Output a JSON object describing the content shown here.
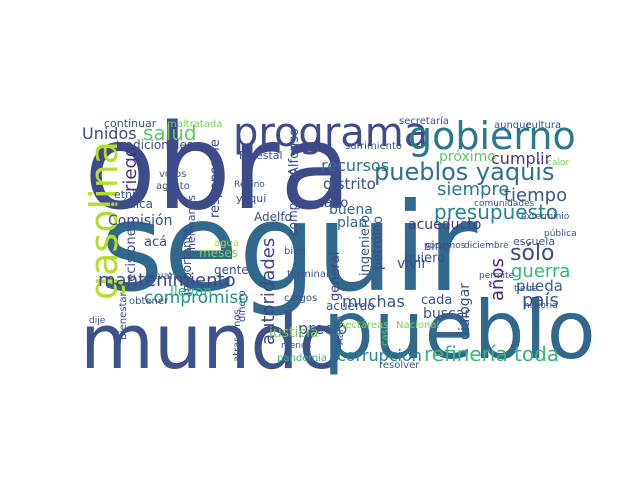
{
  "words": [
    "obra",
    "seguir",
    "mundo",
    "pueblo",
    "programa",
    "gobierno",
    "gasolina",
    "pueblos yaquis",
    "presupuesto",
    "refinería toda",
    "mantenimiento",
    "compromiso",
    "autoridades",
    "guerra",
    "sólo",
    "país",
    "salud",
    "Unidos",
    "siempre",
    "tiempo",
    "muchas",
    "corrupción",
    "precio",
    "justicia",
    "recursos",
    "riego",
    "buena",
    "distrito",
    "cumplir",
    "próximo",
    "acueducto",
    "años",
    "pueda",
    "llevan",
    "responsable",
    "Alfonso",
    "compañero",
    "ingeniero",
    "petróleo",
    "plan",
    "cabo",
    "general",
    "acuerdo",
    "vivir",
    "quiero",
    "sino",
    "buscar",
    "cada",
    "dialogar",
    "escuela",
    "Comisión",
    "médica",
    "etnia",
    "acá",
    "decisiones",
    "hermanos",
    "importante",
    "meses",
    "agua",
    "gente",
    "Adelfo",
    "yaqui",
    "Regino",
    "Forestal",
    "votos",
    "agosto",
    "continuar",
    "maltratada",
    "tradicionales",
    "secretaría",
    "sufrimiento",
    "aunque",
    "cultura",
    "hectáreas",
    "Nacional",
    "casi",
    "resolver",
    "pandemia",
    "cargos",
    "terminar",
    "bien",
    "dinero",
    "atrasemos",
    "dije",
    "obtener",
    "llevar",
    "Bienestar",
    "tierra",
    "permite",
    "podemos",
    "diciembre",
    "comunidades",
    "exterminio",
    "historia",
    "pública",
    "calor",
    "Aarón",
    "menos"
  ]
}
